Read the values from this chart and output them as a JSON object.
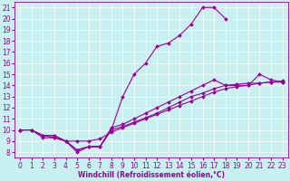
{
  "xlabel": "Windchill (Refroidissement éolien,°C)",
  "bg_color": "#c8f0f0",
  "line_color": "#990099",
  "grid_color": "#ffffff",
  "xlim": [
    -0.5,
    23.5
  ],
  "ylim": [
    7.5,
    21.5
  ],
  "xticks": [
    0,
    1,
    2,
    3,
    4,
    5,
    6,
    7,
    8,
    9,
    10,
    11,
    12,
    13,
    14,
    15,
    16,
    17,
    18,
    19,
    20,
    21,
    22,
    23
  ],
  "yticks": [
    8,
    9,
    10,
    11,
    12,
    13,
    14,
    15,
    16,
    17,
    18,
    19,
    20,
    21
  ],
  "lines": [
    {
      "x": [
        0,
        1,
        2,
        3,
        4,
        5,
        6,
        7,
        8,
        9,
        10,
        11,
        12,
        13,
        14,
        15,
        16,
        17,
        18
      ],
      "y": [
        10,
        10,
        9.5,
        9.5,
        9.0,
        8.0,
        8.5,
        8.5,
        10.0,
        13.0,
        15.0,
        16.0,
        17.5,
        17.8,
        18.5,
        19.5,
        21.0,
        21.0,
        20.0
      ]
    },
    {
      "x": [
        0,
        1,
        2,
        3,
        4,
        5,
        6,
        7,
        8,
        9,
        10,
        11,
        12,
        13,
        14,
        15,
        16,
        17,
        18,
        19,
        20,
        21,
        22,
        23
      ],
      "y": [
        10,
        10,
        9.5,
        9.5,
        9.0,
        8.2,
        8.5,
        8.5,
        10.2,
        10.5,
        11.0,
        11.5,
        12.0,
        12.5,
        13.0,
        13.5,
        14.0,
        14.5,
        14.0,
        14.0,
        14.0,
        15.0,
        14.5,
        14.3
      ]
    },
    {
      "x": [
        0,
        1,
        2,
        3,
        4,
        5,
        6,
        7,
        8,
        9,
        10,
        11,
        12,
        13,
        14,
        15,
        16,
        17,
        18,
        19,
        20,
        21,
        22,
        23
      ],
      "y": [
        10,
        10,
        9.5,
        9.3,
        9.0,
        8.2,
        8.5,
        8.5,
        10.0,
        10.3,
        10.7,
        11.1,
        11.5,
        12.0,
        12.5,
        13.0,
        13.3,
        13.7,
        14.0,
        14.1,
        14.2,
        14.2,
        14.3,
        14.3
      ]
    },
    {
      "x": [
        0,
        1,
        2,
        3,
        4,
        5,
        6,
        7,
        8,
        9,
        10,
        11,
        12,
        13,
        14,
        15,
        16,
        17,
        18,
        19,
        20,
        21,
        22,
        23
      ],
      "y": [
        10,
        10,
        9.3,
        9.3,
        9.0,
        9.0,
        9.0,
        9.2,
        9.8,
        10.2,
        10.6,
        11.0,
        11.4,
        11.8,
        12.2,
        12.6,
        13.0,
        13.4,
        13.7,
        13.9,
        14.0,
        14.2,
        14.3,
        14.4
      ]
    }
  ],
  "tick_fontsize": 5.5,
  "xlabel_fontsize": 5.5,
  "marker_size": 2.0,
  "line_width": 0.8
}
